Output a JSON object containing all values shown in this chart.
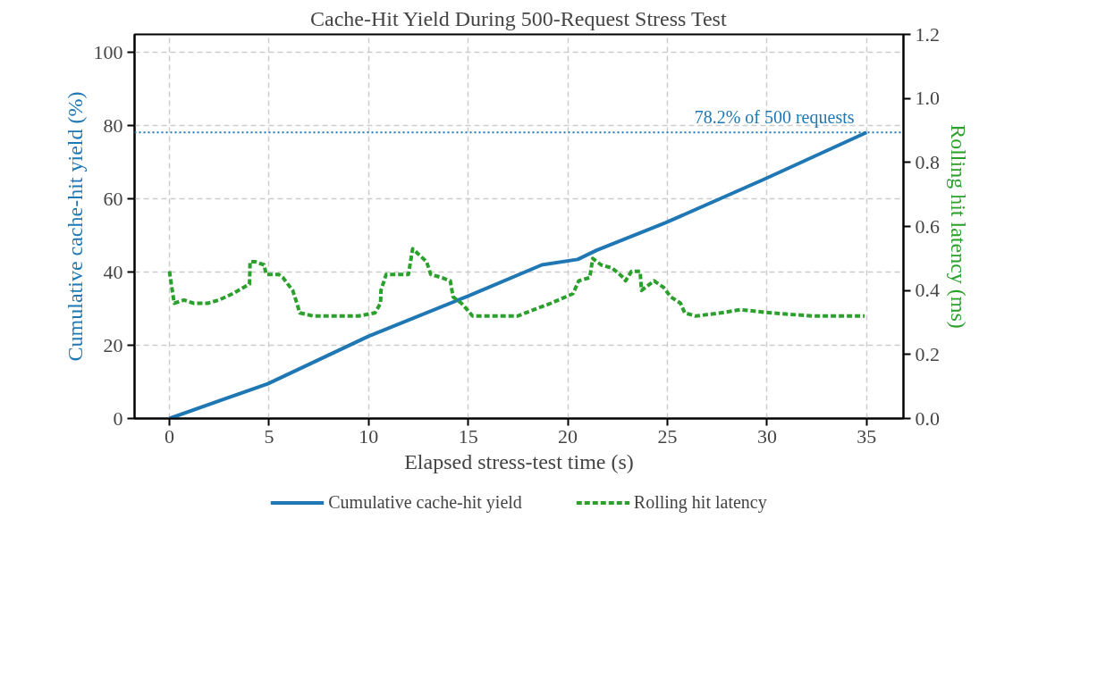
{
  "chart_data": {
    "type": "line",
    "title": "Cache-Hit Yield During 500-Request Stress Test",
    "xlabel": "Elapsed stress-test time (s)",
    "ylabel": "Cumulative cache-hit yield (%)",
    "y2label": "Rolling hit latency (ms)",
    "xlim": [
      -1.75,
      36.85
    ],
    "xticks": [
      0,
      5,
      10,
      15,
      20,
      25,
      30,
      35
    ],
    "ylim": [
      0,
      105
    ],
    "yticks": [
      0,
      20,
      40,
      60,
      80,
      100
    ],
    "y2lim": [
      0,
      1.2
    ],
    "y2ticks": [
      {
        "value": 0,
        "label": "0.0"
      },
      0.2,
      0.4,
      0.6,
      0.8,
      {
        "value": 1,
        "label": "1.0"
      },
      1.2
    ],
    "grid": true,
    "legend": "bottom",
    "series": [
      {
        "name": "Cumulative cache-hit yield",
        "color": "#1f77b4",
        "line_style": "solid",
        "x": [
          0,
          4.94,
          10,
          15,
          18.7,
          20.5,
          21.45,
          24.9,
          29.9,
          35
        ],
        "values": [
          0,
          9.5,
          22.5,
          33.5,
          42,
          43.5,
          46,
          53.5,
          65.5,
          78.2
        ]
      },
      {
        "name": "Rolling hit latency",
        "color": "#2ca02c",
        "line_style": "dashed",
        "axis": "y2",
        "x": [
          0,
          0.24,
          0.73,
          1.22,
          1.92,
          2.48,
          3.18,
          4.02,
          4.05,
          4.3,
          4.75,
          4.86,
          5.49,
          5.7,
          6.19,
          6.4,
          6.54,
          7.24,
          9.48,
          10.32,
          10.6,
          10.62,
          10.88,
          11.72,
          12.0,
          12.21,
          12.56,
          12.91,
          13.12,
          13.68,
          14.1,
          14.24,
          14.66,
          14.95,
          15.22,
          17.47,
          18.3,
          19.15,
          20.26,
          20.55,
          21.1,
          21.25,
          21.67,
          22.23,
          22.79,
          22.9,
          23.2,
          23.63,
          23.7,
          24.33,
          24.8,
          25.17,
          25.66,
          25.87,
          26.43,
          27.69,
          28.67,
          30.21,
          32.3,
          34.9
        ],
        "values": [
          0.46,
          0.36,
          0.37,
          0.36,
          0.36,
          0.37,
          0.39,
          0.42,
          0.49,
          0.49,
          0.48,
          0.45,
          0.45,
          0.44,
          0.4,
          0.36,
          0.33,
          0.32,
          0.32,
          0.33,
          0.36,
          0.4,
          0.45,
          0.45,
          0.45,
          0.53,
          0.51,
          0.49,
          0.45,
          0.44,
          0.43,
          0.38,
          0.36,
          0.34,
          0.32,
          0.32,
          0.34,
          0.36,
          0.39,
          0.43,
          0.44,
          0.5,
          0.48,
          0.47,
          0.44,
          0.43,
          0.46,
          0.46,
          0.4,
          0.43,
          0.41,
          0.38,
          0.36,
          0.33,
          0.32,
          0.33,
          0.34,
          0.33,
          0.32,
          0.32
        ]
      }
    ],
    "ref_lines": [
      {
        "axis": "y",
        "value": 78.2,
        "label": "78.2% of 500 requests",
        "color": "#1f77b4",
        "line_style": "dotted"
      }
    ]
  }
}
